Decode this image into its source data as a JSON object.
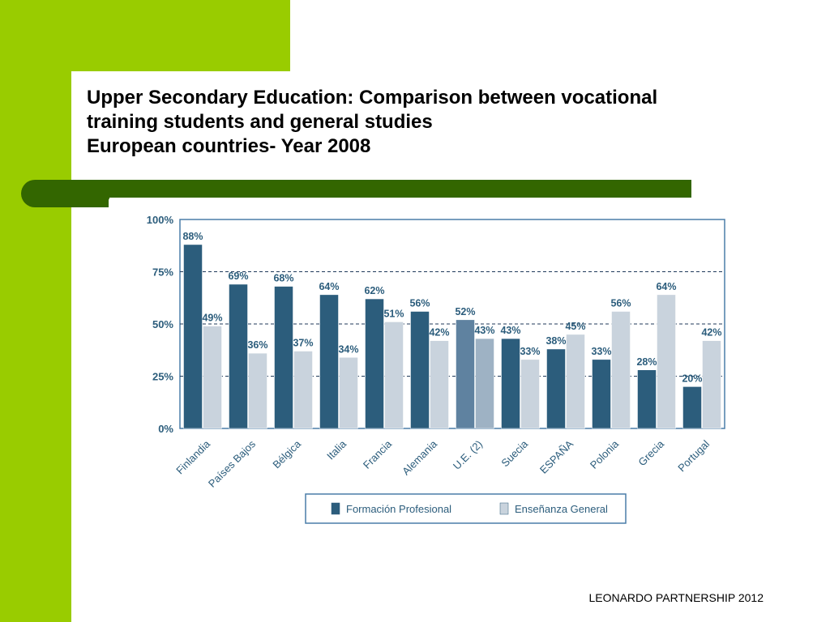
{
  "slide": {
    "title_lines": [
      "Upper Secondary Education: Comparison between vocational",
      "training students and general studies",
      "European countries- Year 2008"
    ],
    "footer": "LEONARDO PARTNERSHIP 2012"
  },
  "colors": {
    "sidebar_green": "#99cc00",
    "band_green": "#336600",
    "vocational": "#2c5d7c",
    "general": "#c9d3dd",
    "eu_vocational": "#5f82a0",
    "eu_general": "#9eb2c4",
    "frame": "#4a7da8"
  },
  "chart_data": {
    "type": "bar",
    "title": "",
    "xlabel": "",
    "ylabel": "",
    "ylim": [
      0,
      100
    ],
    "y_ticks": [
      "0%",
      "25%",
      "50%",
      "75%",
      "100%"
    ],
    "y_tick_values": [
      0,
      25,
      50,
      75,
      100
    ],
    "dashed_gridlines": [
      25,
      50,
      75
    ],
    "legend_position": "bottom",
    "categories": [
      "Finlandia",
      "Países Bajos",
      "Bélgica",
      "Italia",
      "Francia",
      "Alemania",
      "U.E. (2)",
      "Suecia",
      "ESPAÑA",
      "Polonia",
      "Grecia",
      "Portugal"
    ],
    "highlighted_category": "U.E. (2)",
    "series": [
      {
        "name": "Formación Profesional",
        "values": [
          88,
          69,
          68,
          64,
          62,
          56,
          52,
          43,
          38,
          33,
          28,
          20
        ]
      },
      {
        "name": "Enseñanza General",
        "values": [
          49,
          36,
          37,
          34,
          51,
          42,
          43,
          33,
          45,
          56,
          64,
          42
        ]
      }
    ]
  }
}
